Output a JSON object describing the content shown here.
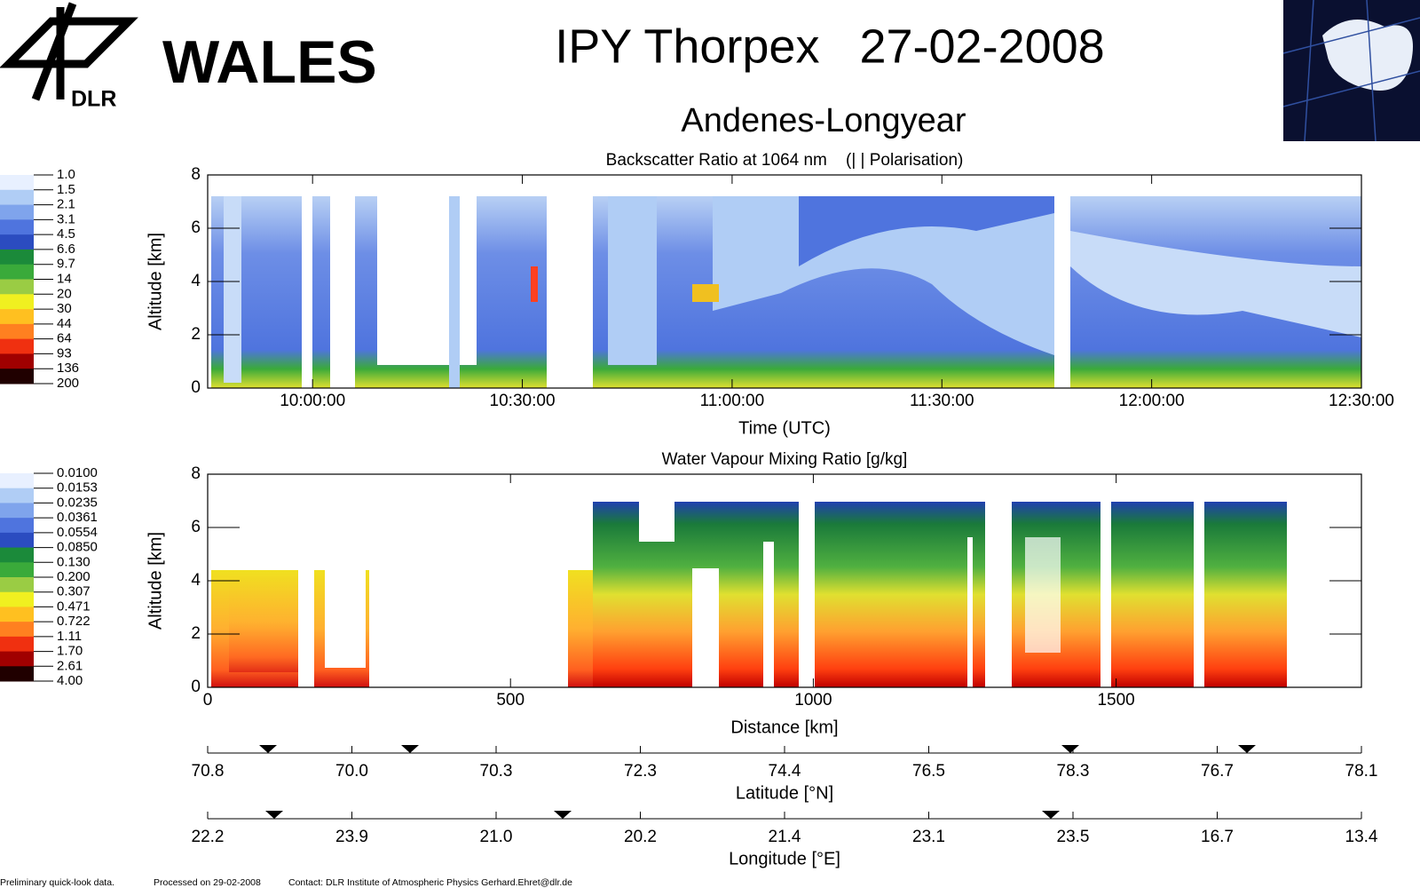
{
  "header": {
    "logo_text": "DLR",
    "instrument": "WALES",
    "title": "IPY Thorpex   27-02-2008",
    "subtitle": "Andenes-Longyear"
  },
  "chart_data": [
    {
      "type": "heatmap",
      "title": "Backscatter Ratio at 1064 nm    (| | Polarisation)",
      "xlabel": "Time (UTC)",
      "ylabel": "Altitude [km]",
      "xlim": [
        585,
        750
      ],
      "xticks": [
        {
          "value": 600,
          "label": "10:00:00"
        },
        {
          "value": 630,
          "label": "10:30:00"
        },
        {
          "value": 660,
          "label": "11:00:00"
        },
        {
          "value": 690,
          "label": "11:30:00"
        },
        {
          "value": 720,
          "label": "12:00:00"
        },
        {
          "value": 750,
          "label": "12:30:00"
        }
      ],
      "ylim": [
        0,
        8
      ],
      "yticks": [
        0,
        2,
        4,
        6,
        8
      ],
      "colorbar": {
        "levels": [
          {
            "value": 1,
            "label": "1.0"
          },
          1.5,
          2.1,
          3.1,
          4.5,
          6.6,
          9.7,
          14,
          20,
          30,
          44,
          64,
          93,
          136,
          200
        ],
        "colors": [
          "#e8f0ff",
          "#b0cdf5",
          "#7fa4ec",
          "#4f74de",
          "#2b4cc0",
          "#1b8a3a",
          "#3aaa3a",
          "#9acc44",
          "#f0f020",
          "#ffc020",
          "#ff8020",
          "#f03010",
          "#a00000",
          "#200000"
        ]
      }
    },
    {
      "type": "heatmap",
      "title": "Water Vapour Mixing Ratio [g/kg]",
      "xlabel": "Distance [km]",
      "ylabel": "Altitude [km]",
      "xlim": [
        0,
        1905
      ],
      "xticks": [
        0,
        500,
        1000,
        1500
      ],
      "ylim": [
        0,
        8
      ],
      "yticks": [
        0,
        2,
        4,
        6,
        8
      ],
      "colorbar": {
        "levels": [
          {
            "value": 0.01,
            "label": "0.0100"
          },
          0.0153,
          0.0235,
          0.0361,
          0.0554,
          {
            "value": 0.085,
            "label": "0.0850"
          },
          {
            "value": 0.13,
            "label": "0.130"
          },
          {
            "value": 0.2,
            "label": "0.200"
          },
          0.307,
          0.471,
          0.722,
          1.11,
          {
            "value": 1.7,
            "label": "1.70"
          },
          2.61,
          {
            "value": 4,
            "label": "4.00"
          }
        ],
        "colors": [
          "#e8f0ff",
          "#b0cdf5",
          "#7fa4ec",
          "#4f74de",
          "#2b4cc0",
          "#1b8a3a",
          "#3aaa3a",
          "#9acc44",
          "#f0f020",
          "#ffc020",
          "#ff8020",
          "#f03010",
          "#a00000",
          "#200000"
        ]
      }
    }
  ],
  "waypoint_axes": [
    {
      "label": "Latitude [°N]",
      "ticks": [
        "70.8",
        "70.0",
        "70.3",
        "72.3",
        "74.4",
        "76.5",
        "78.3",
        "76.7",
        "78.1"
      ]
    },
    {
      "label": "Longitude [°E]",
      "ticks": [
        "22.2",
        "23.9",
        "21.0",
        "20.2",
        "21.4",
        "23.1",
        "23.5",
        "16.7",
        "13.4"
      ]
    }
  ],
  "footer": [
    "Preliminary quick-look data.",
    "Processed on 29-02-2008",
    "Contact: DLR Institute of Atmospheric Physics  Gerhard.Ehret@dlr.de"
  ]
}
